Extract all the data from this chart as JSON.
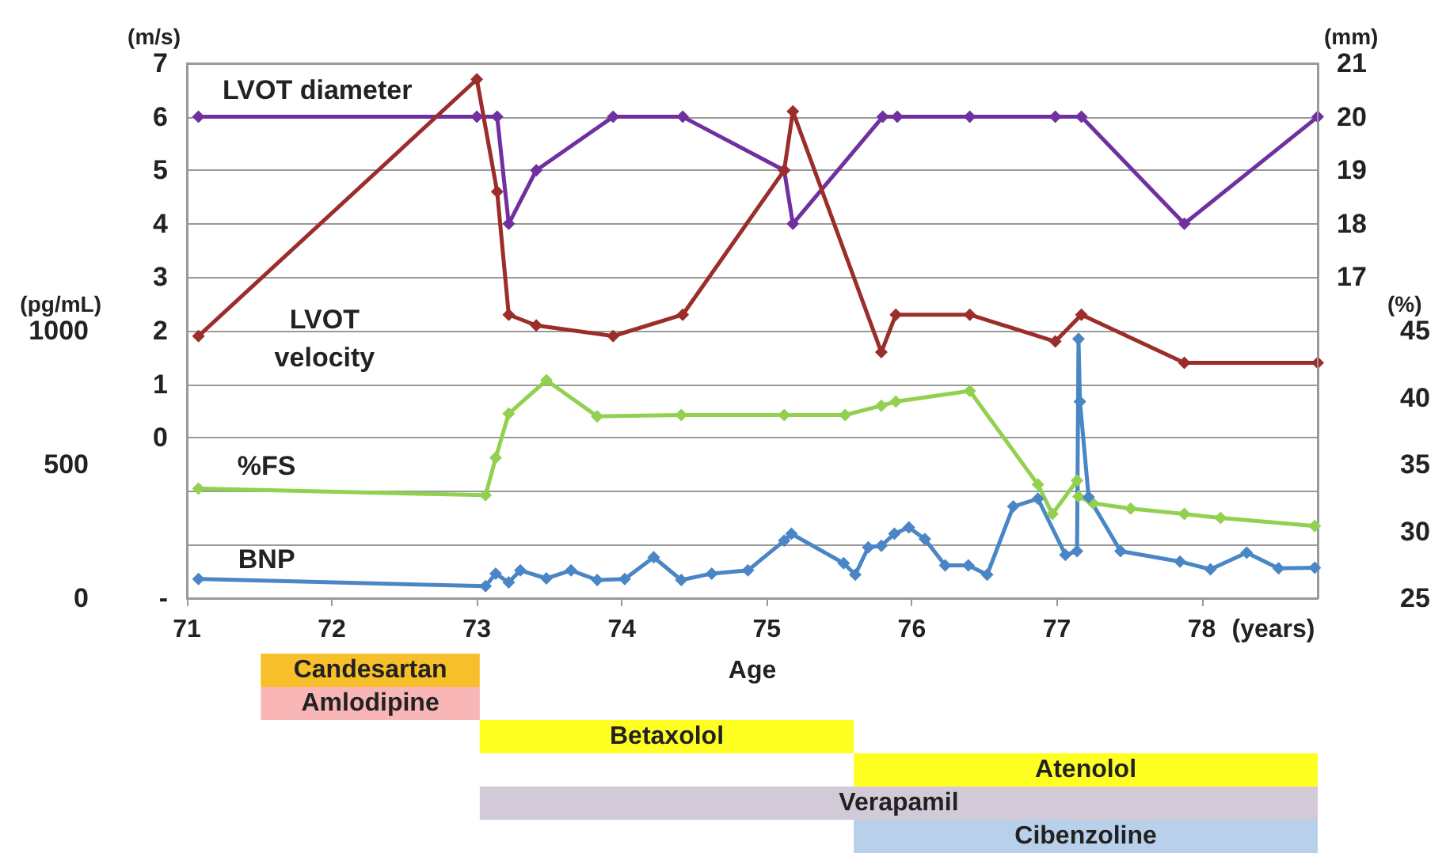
{
  "chart_data": [
    {
      "type": "line",
      "xlabel": "Age",
      "ylabel": "(m/s)",
      "y2label": "(mm)",
      "xlim": [
        71,
        78.8
      ],
      "xticks": [
        71,
        72,
        73,
        74,
        75,
        76,
        77,
        78
      ],
      "ylim": [
        -3,
        7
      ],
      "yticks": [
        {
          "value": -3,
          "label": "-"
        },
        0,
        1,
        2,
        3,
        4,
        5,
        6,
        7
      ],
      "y2lim": [
        11,
        21
      ],
      "y2ticks": [
        17,
        18,
        19,
        20,
        21
      ],
      "grid": "y",
      "legend": false,
      "marker": "diamond",
      "line_style": "solid",
      "series": [
        {
          "name": "LVOT diameter",
          "color": "#7030a0",
          "axis": "y2",
          "x": [
            71.08,
            73.0,
            73.14,
            73.22,
            73.41,
            73.94,
            74.42,
            75.12,
            75.18,
            75.8,
            75.9,
            76.4,
            76.99,
            77.17,
            77.88,
            78.8
          ],
          "values": [
            20,
            20,
            20,
            18,
            19,
            20,
            20,
            19,
            18,
            20,
            20,
            20,
            20,
            20,
            18,
            20
          ]
        },
        {
          "name": "LVOT velocity",
          "color": "#9b2d2a",
          "x": [
            71.08,
            73.0,
            73.14,
            73.22,
            73.41,
            73.94,
            74.42,
            75.12,
            75.18,
            75.79,
            75.89,
            76.4,
            76.99,
            77.17,
            77.88,
            78.8
          ],
          "values": [
            1.9,
            6.7,
            4.6,
            2.3,
            2.1,
            1.9,
            2.3,
            5.0,
            6.1,
            1.6,
            2.3,
            2.3,
            1.8,
            2.3,
            1.4,
            1.4
          ]
        }
      ],
      "annotations": [
        "(years)"
      ]
    },
    {
      "type": "line",
      "ylabel": "(pg/mL)",
      "y2label": "(%)",
      "xlim": [
        71,
        78.8
      ],
      "tick_labels": "y",
      "ylim": [
        0,
        2000
      ],
      "yticks": [
        0,
        500,
        1000
      ],
      "y2lim": [
        25,
        65
      ],
      "y2ticks": [
        25,
        30,
        35,
        40,
        45
      ],
      "legend": false,
      "marker": "diamond",
      "line_style": "solid",
      "series": [
        {
          "name": "%FS",
          "color": "#92d050",
          "axis": "y2",
          "x": [
            71.08,
            73.06,
            73.13,
            73.22,
            73.48,
            73.83,
            74.41,
            75.12,
            75.54,
            75.79,
            75.89,
            76.4,
            76.87,
            76.97,
            77.14,
            77.15,
            77.25,
            77.51,
            77.88,
            78.13,
            78.78
          ],
          "values": [
            33.2,
            32.7,
            35.5,
            38.8,
            41.3,
            38.6,
            38.7,
            38.7,
            38.7,
            39.4,
            39.7,
            40.5,
            33.5,
            31.3,
            33.8,
            32.6,
            32.1,
            31.7,
            31.3,
            31.0,
            30.4
          ]
        },
        {
          "name": "BNP",
          "color": "#4a86c5",
          "x": [
            71.08,
            73.06,
            73.13,
            73.22,
            73.3,
            73.48,
            73.65,
            73.83,
            74.02,
            74.22,
            74.41,
            74.62,
            74.87,
            75.12,
            75.17,
            75.53,
            75.61,
            75.7,
            75.79,
            75.88,
            75.98,
            76.09,
            76.23,
            76.39,
            76.52,
            76.7,
            76.87,
            77.06,
            77.14,
            77.15,
            77.16,
            77.22,
            77.44,
            77.85,
            78.06,
            78.31,
            78.53,
            78.78
          ],
          "values": [
            72,
            45,
            92,
            59,
            104,
            74,
            104,
            68,
            72,
            153,
            68,
            92,
            104,
            215,
            241,
            131,
            88,
            190,
            196,
            241,
            265,
            221,
            123,
            123,
            88,
            343,
            372,
            162,
            176,
            970,
            735,
            378,
            176,
            137,
            108,
            170,
            112,
            114
          ]
        }
      ]
    },
    {
      "type": "bar",
      "orientation": "horizontal",
      "tick_labels": false,
      "xlim": [
        71,
        78.8
      ],
      "categories": [
        "Candesartan",
        "Amlodipine",
        "Betaxolol",
        "Atenolol",
        "Verapamil",
        "Cibenzoline"
      ],
      "base": [
        71.51,
        71.51,
        73.02,
        75.6,
        73.02,
        75.6
      ],
      "values": [
        1.51,
        1.51,
        2.58,
        3.2,
        5.78,
        3.2
      ],
      "colors": [
        "#f7bf2a",
        "#f9b6b6",
        "#ffff22",
        "#ffff22",
        "#d3cad8",
        "#b9d0ea"
      ]
    }
  ]
}
